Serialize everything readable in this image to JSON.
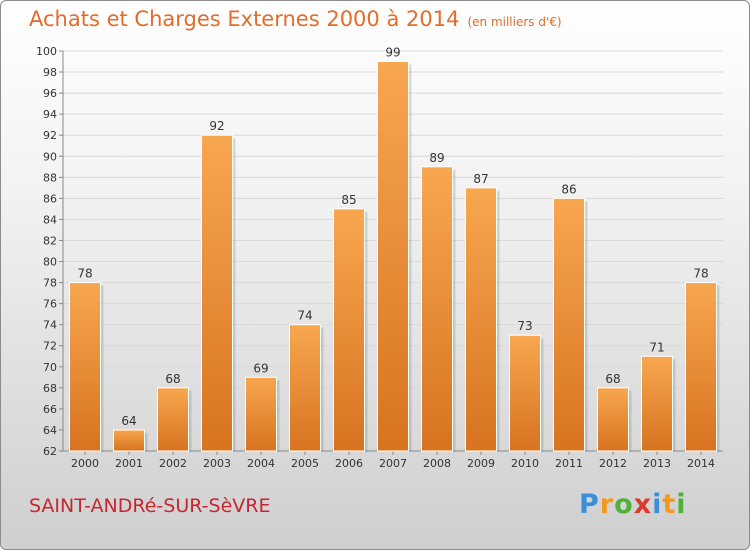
{
  "title": "Achats et Charges Externes 2000 à 2014",
  "unit": "(en milliers d'€)",
  "town": "SAINT-ANDRé-SUR-SèVRE",
  "logo": {
    "letters": [
      "P",
      "r",
      "o",
      "x",
      "i",
      "t",
      "i"
    ],
    "colors": [
      "#3a8fd8",
      "#f39a1e",
      "#4fb03a",
      "#d93a2b",
      "#3a8fd8",
      "#f39a1e",
      "#4fb03a"
    ]
  },
  "colors": {
    "title": "#e26d2a",
    "town": "#c8262f",
    "bar_light": "#f7a750",
    "bar_dark": "#d8731e",
    "grid": "#d9d9d9"
  },
  "chart_data": {
    "type": "bar",
    "title": "Achats et Charges Externes 2000 à 2014",
    "subtitle": "(en milliers d'€)",
    "xlabel": "",
    "ylabel": "",
    "categories": [
      "2000",
      "2001",
      "2002",
      "2003",
      "2004",
      "2005",
      "2006",
      "2007",
      "2008",
      "2009",
      "2010",
      "2011",
      "2012",
      "2013",
      "2014"
    ],
    "values": [
      78,
      64,
      68,
      92,
      69,
      74,
      85,
      99,
      89,
      87,
      73,
      86,
      68,
      71,
      78
    ],
    "ylim": [
      62,
      100
    ],
    "yticks": [
      62,
      64,
      66,
      68,
      70,
      72,
      74,
      76,
      78,
      80,
      82,
      84,
      86,
      88,
      90,
      92,
      94,
      96,
      98,
      100
    ],
    "grid": true,
    "legend": "none"
  }
}
